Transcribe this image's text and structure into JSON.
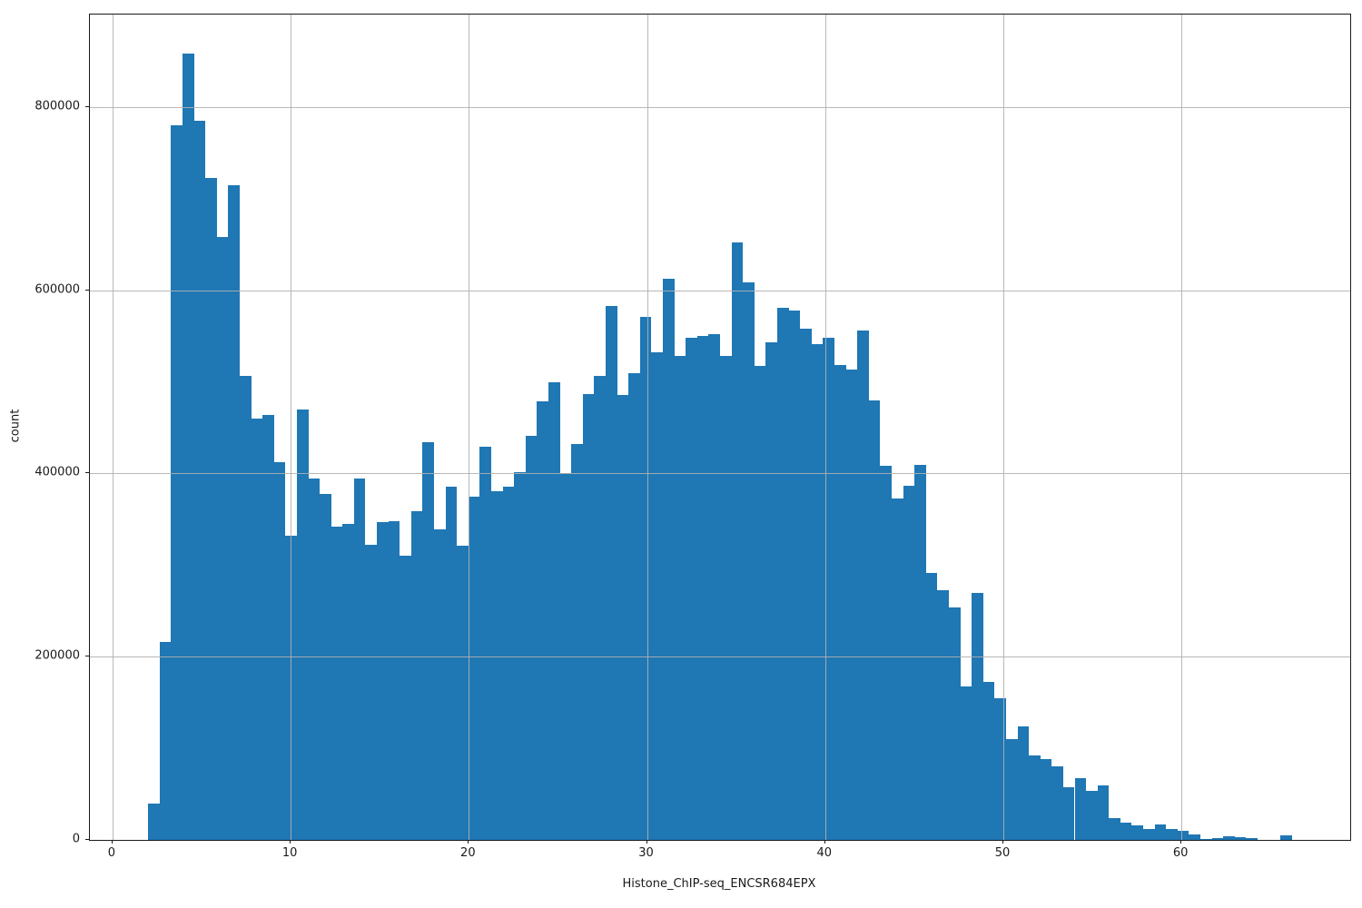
{
  "figure": {
    "background": "#ffffff"
  },
  "chart_data": {
    "type": "bar",
    "subtype": "histogram",
    "title": "",
    "xlabel": "Histone_ChIP-seq_ENCSR684EPX",
    "ylabel": "count",
    "bar_color": "#1f77b4",
    "grid_color": "#b0b0b0",
    "axis_color": "#1a1a1a",
    "grid": true,
    "grid_over_bars": true,
    "legend_position": "none",
    "xlim": [
      -1.27,
      69.47
    ],
    "ylim": [
      0,
      901000
    ],
    "xticks": [
      0,
      10,
      20,
      30,
      40,
      50,
      60
    ],
    "yticks": [
      0,
      200000,
      400000,
      600000,
      800000
    ],
    "bin_start": 2.0,
    "bin_width": 0.642,
    "counts": [
      40000,
      216000,
      780000,
      858000,
      785000,
      723000,
      658000,
      715000,
      507000,
      460000,
      464000,
      412000,
      332000,
      470000,
      395000,
      378000,
      342000,
      345000,
      395000,
      322000,
      347000,
      348000,
      310000,
      359000,
      434000,
      339000,
      386000,
      321000,
      375000,
      429000,
      381000,
      386000,
      401000,
      441000,
      479000,
      500000,
      400000,
      432000,
      487000,
      507000,
      583000,
      486000,
      509000,
      571000,
      532000,
      613000,
      528000,
      548000,
      550000,
      552000,
      528000,
      652000,
      609000,
      517000,
      543000,
      581000,
      578000,
      558000,
      541000,
      548000,
      518000,
      513000,
      556000,
      480000,
      408000,
      373000,
      387000,
      409000,
      291000,
      273000,
      254000,
      168000,
      270000,
      172000,
      155000,
      110000,
      124000,
      92000,
      88000,
      80000,
      58000,
      67000,
      54000,
      59000,
      24000,
      19000,
      16000,
      12000,
      17000,
      12000,
      10000,
      6000,
      1000,
      2000,
      4000,
      3000,
      2000,
      0,
      0,
      5000
    ]
  }
}
